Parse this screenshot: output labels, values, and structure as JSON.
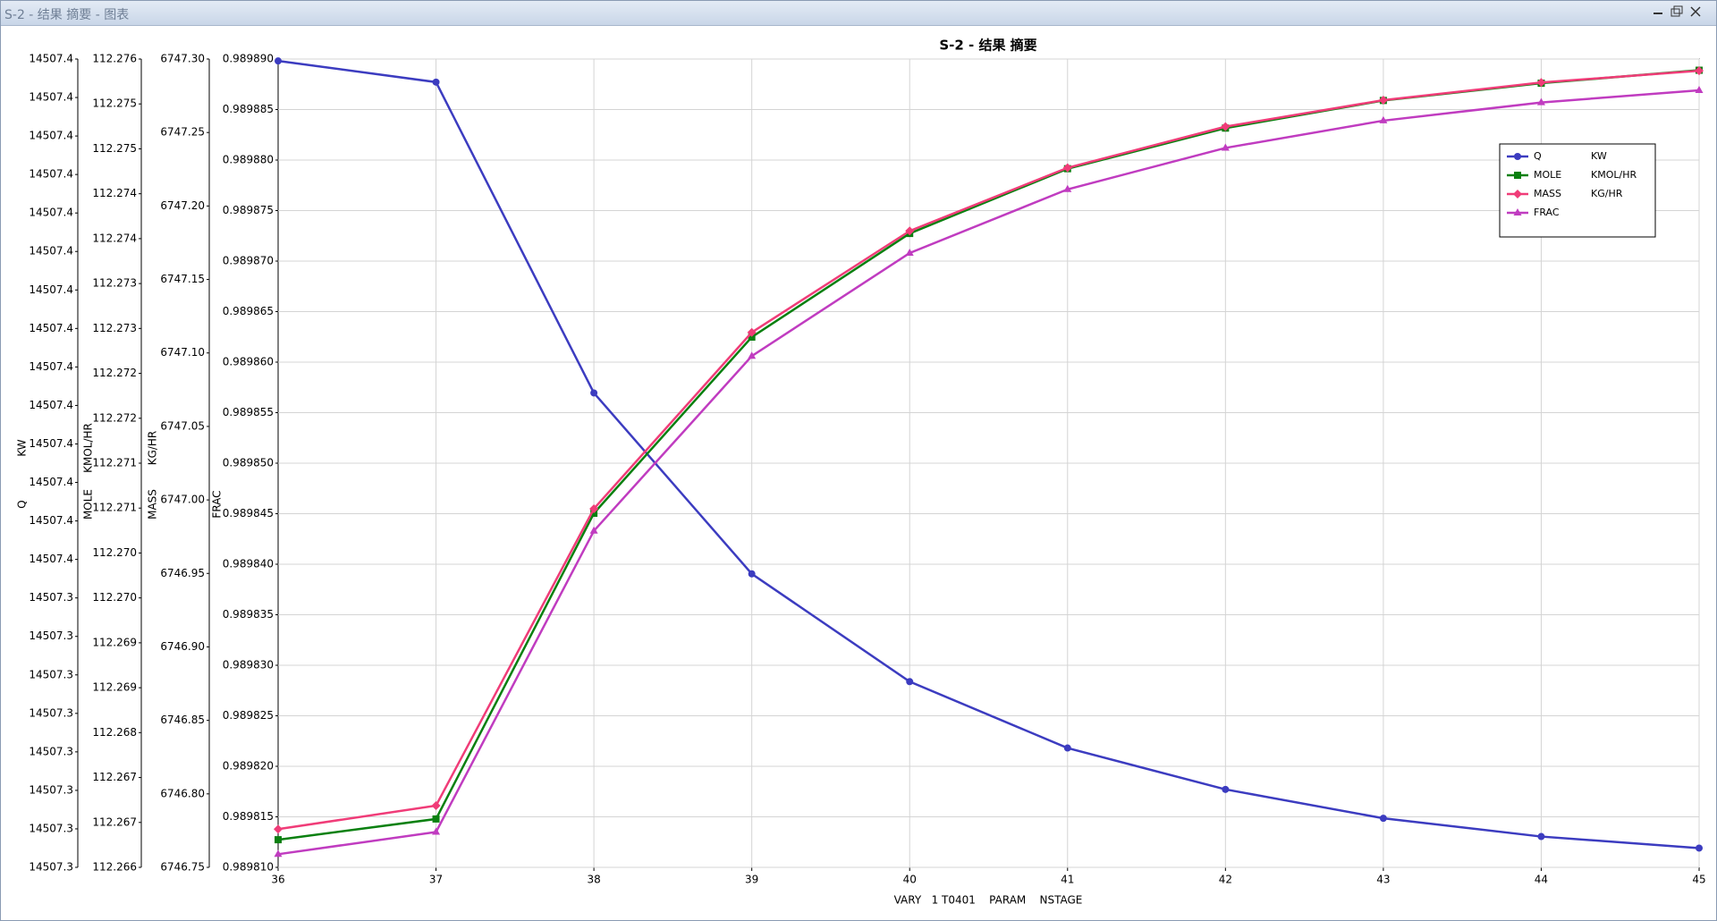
{
  "window_title": "S-2 - 结果 摘要 - 图表",
  "chart_data": {
    "type": "line",
    "title": "S-2 - 结果 摘要",
    "x_label": "VARY   1 T0401    PARAM    NSTAGE",
    "x": [
      36,
      37,
      38,
      39,
      40,
      41,
      42,
      43,
      44,
      45
    ],
    "xlim": [
      36,
      45
    ],
    "xticks": [
      36,
      37,
      38,
      39,
      40,
      41,
      42,
      43,
      44,
      45
    ],
    "grid": true,
    "legend": "upper right",
    "ylim": [
      14507.32,
      14507.404
    ],
    "yticks": [
      {
        "value": 14507.32,
        "label": "14507.3"
      },
      {
        "value": 14507.324,
        "label": "14507.3"
      },
      {
        "value": 14507.328,
        "label": "14507.3"
      },
      {
        "value": 14507.332,
        "label": "14507.3"
      },
      {
        "value": 14507.336,
        "label": "14507.3"
      },
      {
        "value": 14507.34,
        "label": "14507.3"
      },
      {
        "value": 14507.344,
        "label": "14507.3"
      },
      {
        "value": 14507.348,
        "label": "14507.3"
      },
      {
        "value": 14507.352,
        "label": "14507.4"
      },
      {
        "value": 14507.356,
        "label": "14507.4"
      },
      {
        "value": 14507.36,
        "label": "14507.4"
      },
      {
        "value": 14507.364,
        "label": "14507.4"
      },
      {
        "value": 14507.368,
        "label": "14507.4"
      },
      {
        "value": 14507.372,
        "label": "14507.4"
      },
      {
        "value": 14507.376,
        "label": "14507.4"
      },
      {
        "value": 14507.38,
        "label": "14507.4"
      },
      {
        "value": 14507.384,
        "label": "14507.4"
      },
      {
        "value": 14507.388,
        "label": "14507.4"
      },
      {
        "value": 14507.392,
        "label": "14507.4"
      },
      {
        "value": 14507.396,
        "label": "14507.4"
      },
      {
        "value": 14507.4,
        "label": "14507.4"
      },
      {
        "value": 14507.404,
        "label": "14507.4"
      }
    ],
    "y2lim": [
      112.26645,
      112.27581
    ],
    "y2ticks": [
      {
        "value": 112.26645,
        "label": "112.266"
      },
      {
        "value": 112.26697,
        "label": "112.267"
      },
      {
        "value": 112.26749,
        "label": "112.267"
      },
      {
        "value": 112.26801,
        "label": "112.268"
      },
      {
        "value": 112.26853,
        "label": "112.269"
      },
      {
        "value": 112.26905,
        "label": "112.269"
      },
      {
        "value": 112.26957,
        "label": "112.270"
      },
      {
        "value": 112.27009,
        "label": "112.270"
      },
      {
        "value": 112.27061,
        "label": "112.271"
      },
      {
        "value": 112.27113,
        "label": "112.271"
      },
      {
        "value": 112.27165,
        "label": "112.272"
      },
      {
        "value": 112.27217,
        "label": "112.272"
      },
      {
        "value": 112.27269,
        "label": "112.273"
      },
      {
        "value": 112.27321,
        "label": "112.273"
      },
      {
        "value": 112.27373,
        "label": "112.274"
      },
      {
        "value": 112.27425,
        "label": "112.274"
      },
      {
        "value": 112.27477,
        "label": "112.275"
      },
      {
        "value": 112.27529,
        "label": "112.275"
      },
      {
        "value": 112.27581,
        "label": "112.276"
      }
    ],
    "y3lim": [
      6746.75,
      6747.3
    ],
    "y3ticks": [
      {
        "value": 6746.75,
        "label": "6746.75"
      },
      {
        "value": 6746.8,
        "label": "6746.80"
      },
      {
        "value": 6746.85,
        "label": "6746.85"
      },
      {
        "value": 6746.9,
        "label": "6746.90"
      },
      {
        "value": 6746.95,
        "label": "6746.95"
      },
      {
        "value": 6747.0,
        "label": "6747.00"
      },
      {
        "value": 6747.05,
        "label": "6747.05"
      },
      {
        "value": 6747.1,
        "label": "6747.10"
      },
      {
        "value": 6747.15,
        "label": "6747.15"
      },
      {
        "value": 6747.2,
        "label": "6747.20"
      },
      {
        "value": 6747.25,
        "label": "6747.25"
      },
      {
        "value": 6747.3,
        "label": "6747.30"
      }
    ],
    "y4lim": [
      0.98981,
      0.98989
    ],
    "y4ticks": [
      {
        "value": 0.98981,
        "label": "0.989810"
      },
      {
        "value": 0.989815,
        "label": "0.989815"
      },
      {
        "value": 0.98982,
        "label": "0.989820"
      },
      {
        "value": 0.989825,
        "label": "0.989825"
      },
      {
        "value": 0.98983,
        "label": "0.989830"
      },
      {
        "value": 0.989835,
        "label": "0.989835"
      },
      {
        "value": 0.98984,
        "label": "0.989840"
      },
      {
        "value": 0.989845,
        "label": "0.989845"
      },
      {
        "value": 0.98985,
        "label": "0.989850"
      },
      {
        "value": 0.989855,
        "label": "0.989855"
      },
      {
        "value": 0.98986,
        "label": "0.989860"
      },
      {
        "value": 0.989865,
        "label": "0.989865"
      },
      {
        "value": 0.98987,
        "label": "0.989870"
      },
      {
        "value": 0.989875,
        "label": "0.989875"
      },
      {
        "value": 0.98988,
        "label": "0.989880"
      },
      {
        "value": 0.989885,
        "label": "0.989885"
      },
      {
        "value": 0.98989,
        "label": "0.989890"
      }
    ],
    "series": [
      {
        "name": "Q",
        "unit": "KW",
        "color": "#3c3cc0",
        "marker": "circle",
        "axis": "y",
        "values": [
          14507.4038,
          14507.4016,
          14507.3693,
          14507.3505,
          14507.3393,
          14507.3324,
          14507.3281,
          14507.3251,
          14507.3232,
          14507.322
        ]
      },
      {
        "name": "MOLE",
        "unit": "KMOL/HR",
        "color": "#0a8010",
        "marker": "square",
        "axis": "y2",
        "values": [
          112.26677,
          112.26701,
          112.27055,
          112.27259,
          112.27379,
          112.27454,
          112.27501,
          112.27533,
          112.27553,
          112.27568
        ]
      },
      {
        "name": "MASS",
        "unit": "KG/HR",
        "color": "#f03c78",
        "marker": "diamond",
        "axis": "y3",
        "values": [
          6746.776,
          6746.792,
          6746.994,
          6747.114,
          6747.183,
          6747.226,
          6747.254,
          6747.272,
          6747.284,
          6747.292
        ]
      },
      {
        "name": "FRAC",
        "color": "#c03cc0",
        "marker": "triangle",
        "axis": "y4",
        "values": [
          0.9898113,
          0.9898135,
          0.9898433,
          0.9898606,
          0.9898708,
          0.9898771,
          0.9898812,
          0.9898839,
          0.9898857,
          0.9898869
        ]
      }
    ]
  }
}
